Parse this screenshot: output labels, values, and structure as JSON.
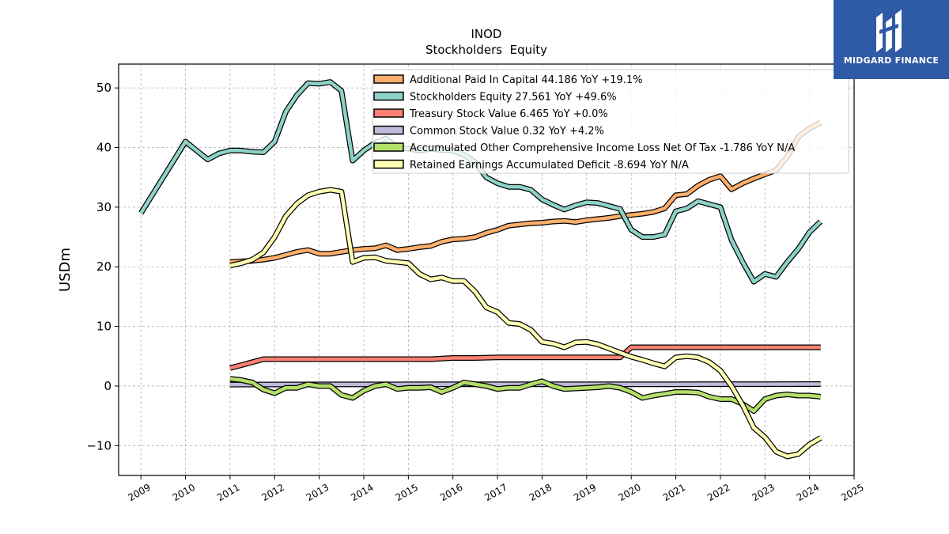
{
  "brand": {
    "name": "MIDGARD FINANCE",
    "color": "#2f5aa6"
  },
  "chart_data": {
    "type": "line",
    "title": "INOD",
    "subtitle": "Stockholders  Equity",
    "ylabel": "USDm",
    "xlabel": "",
    "xlim": [
      2008.5,
      2025
    ],
    "ylim": [
      -15,
      54
    ],
    "xticks": [
      2009,
      2010,
      2011,
      2012,
      2013,
      2014,
      2015,
      2016,
      2017,
      2018,
      2019,
      2020,
      2021,
      2022,
      2023,
      2024,
      2025
    ],
    "yticks": [
      -10,
      0,
      10,
      20,
      30,
      40,
      50
    ],
    "grid": true,
    "legend_position": "top-right",
    "series": [
      {
        "name": "Additional Paid In Capital  44.186 YoY +19.1%",
        "color": "#fdae6b",
        "x": [
          2011,
          2011.25,
          2011.5,
          2011.75,
          2012,
          2012.25,
          2012.5,
          2012.75,
          2013,
          2013.25,
          2013.5,
          2013.75,
          2014,
          2014.25,
          2014.5,
          2014.75,
          2015,
          2015.25,
          2015.5,
          2015.75,
          2016,
          2016.25,
          2016.5,
          2016.75,
          2017,
          2017.25,
          2017.5,
          2017.75,
          2018,
          2018.25,
          2018.5,
          2018.75,
          2019,
          2019.25,
          2019.5,
          2019.75,
          2020,
          2020.25,
          2020.5,
          2020.75,
          2021,
          2021.25,
          2021.5,
          2021.75,
          2022,
          2022.25,
          2022.5,
          2022.75,
          2023,
          2023.25,
          2023.5,
          2023.75,
          2024,
          2024.25
        ],
        "y": [
          20.8,
          20.9,
          21.0,
          21.2,
          21.5,
          22.0,
          22.5,
          22.8,
          22.2,
          22.2,
          22.5,
          22.8,
          23.0,
          23.1,
          23.6,
          22.8,
          23.0,
          23.3,
          23.5,
          24.2,
          24.6,
          24.7,
          25.0,
          25.7,
          26.2,
          26.9,
          27.1,
          27.3,
          27.4,
          27.6,
          27.7,
          27.5,
          27.8,
          28.0,
          28.2,
          28.5,
          28.7,
          28.9,
          29.2,
          29.8,
          32.0,
          32.2,
          33.6,
          34.6,
          35.2,
          33.0,
          34.0,
          34.8,
          35.5,
          36.2,
          38.5,
          41.8,
          43.2,
          44.2
        ]
      },
      {
        "name": "Stockholders Equity  27.561 YoY +49.6%",
        "color": "#8dd3c7",
        "x": [
          2009,
          2009.25,
          2009.5,
          2009.75,
          2010,
          2010.25,
          2010.5,
          2010.75,
          2011,
          2011.25,
          2011.5,
          2011.75,
          2012,
          2012.25,
          2012.5,
          2012.75,
          2013,
          2013.25,
          2013.5,
          2013.75,
          2014,
          2014.25,
          2014.5,
          2014.75,
          2015,
          2015.25,
          2015.5,
          2015.75,
          2016,
          2016.25,
          2016.5,
          2016.75,
          2017,
          2017.25,
          2017.5,
          2017.75,
          2018,
          2018.25,
          2018.5,
          2018.75,
          2019,
          2019.25,
          2019.5,
          2019.75,
          2020,
          2020.25,
          2020.5,
          2020.75,
          2021,
          2021.25,
          2021.5,
          2021.75,
          2022,
          2022.25,
          2022.5,
          2022.75,
          2023,
          2023.25,
          2023.5,
          2023.75,
          2024,
          2024.25
        ],
        "y": [
          29.0,
          32.0,
          35.0,
          38.0,
          41.0,
          39.5,
          38.0,
          39.0,
          39.5,
          39.5,
          39.3,
          39.2,
          41.0,
          46.0,
          48.8,
          50.8,
          50.7,
          51.0,
          49.5,
          37.8,
          39.5,
          40.8,
          41.5,
          40.0,
          39.8,
          39.5,
          39.8,
          39.6,
          39.5,
          38.8,
          37.5,
          35.0,
          34.0,
          33.4,
          33.4,
          32.9,
          31.3,
          30.4,
          29.6,
          30.3,
          30.8,
          30.7,
          30.2,
          29.7,
          26.2,
          25.0,
          25.0,
          25.4,
          29.3,
          29.8,
          31.0,
          30.5,
          30.0,
          24.5,
          20.8,
          17.5,
          18.8,
          18.3,
          20.8,
          23.0,
          25.8,
          27.6
        ]
      },
      {
        "name": "Treasury Stock Value  6.465 YoY +0.0%",
        "color": "#fb8072",
        "x": [
          2011,
          2011.25,
          2011.5,
          2011.75,
          2012,
          2012.5,
          2013,
          2013.5,
          2014,
          2014.5,
          2015,
          2015.5,
          2016,
          2016.5,
          2017,
          2017.5,
          2018,
          2018.5,
          2019,
          2019.5,
          2019.75,
          2020,
          2020.5,
          2021,
          2021.5,
          2022,
          2022.5,
          2023,
          2023.5,
          2024,
          2024.25
        ],
        "y": [
          3.0,
          3.5,
          4.0,
          4.5,
          4.5,
          4.5,
          4.5,
          4.5,
          4.5,
          4.5,
          4.5,
          4.5,
          4.7,
          4.7,
          4.8,
          4.8,
          4.8,
          4.8,
          4.8,
          4.8,
          4.8,
          6.5,
          6.5,
          6.5,
          6.5,
          6.5,
          6.5,
          6.5,
          6.5,
          6.5,
          6.5
        ]
      },
      {
        "name": "Common Stock Value  0.32 YoY +4.2%",
        "color": "#bebada",
        "x": [
          2011,
          2012,
          2013,
          2014,
          2015,
          2016,
          2017,
          2018,
          2019,
          2020,
          2021,
          2022,
          2023,
          2024,
          2024.25
        ],
        "y": [
          0.25,
          0.26,
          0.27,
          0.27,
          0.28,
          0.28,
          0.29,
          0.29,
          0.3,
          0.3,
          0.3,
          0.31,
          0.31,
          0.32,
          0.32
        ]
      },
      {
        "name": "Accumulated Other Comprehensive Income Loss Net Of Tax  -1.786 YoY N/A",
        "color": "#b3de69",
        "x": [
          2011,
          2011.25,
          2011.5,
          2011.75,
          2012,
          2012.25,
          2012.5,
          2012.75,
          2013,
          2013.25,
          2013.5,
          2013.75,
          2014,
          2014.25,
          2014.5,
          2014.75,
          2015,
          2015.25,
          2015.5,
          2015.75,
          2016,
          2016.25,
          2016.5,
          2016.75,
          2017,
          2017.25,
          2017.5,
          2017.75,
          2018,
          2018.25,
          2018.5,
          2018.75,
          2019,
          2019.25,
          2019.5,
          2019.75,
          2020,
          2020.25,
          2020.5,
          2020.75,
          2021,
          2021.25,
          2021.5,
          2021.75,
          2022,
          2022.25,
          2022.5,
          2022.75,
          2023,
          2023.25,
          2023.5,
          2023.75,
          2024,
          2024.25
        ],
        "y": [
          1.2,
          1.0,
          0.6,
          -0.6,
          -1.2,
          -0.3,
          -0.3,
          0.3,
          0.0,
          0.0,
          -1.5,
          -2.0,
          -0.8,
          0.0,
          0.3,
          -0.5,
          -0.3,
          -0.3,
          -0.2,
          -1.0,
          -0.3,
          0.6,
          0.3,
          0.0,
          -0.5,
          -0.3,
          -0.3,
          0.3,
          0.8,
          0.0,
          -0.5,
          -0.4,
          -0.3,
          -0.2,
          0.0,
          -0.3,
          -1.0,
          -2.0,
          -1.6,
          -1.3,
          -1.0,
          -1.0,
          -1.1,
          -1.8,
          -2.2,
          -2.2,
          -3.0,
          -4.2,
          -2.2,
          -1.6,
          -1.4,
          -1.6,
          -1.6,
          -1.8
        ]
      },
      {
        "name": "Retained Earnings Accumulated Deficit  -8.694 YoY N/A",
        "color": "#ffffb3",
        "x": [
          2011,
          2011.25,
          2011.5,
          2011.75,
          2012,
          2012.25,
          2012.5,
          2012.75,
          2013,
          2013.25,
          2013.5,
          2013.75,
          2014,
          2014.25,
          2014.5,
          2014.75,
          2015,
          2015.25,
          2015.5,
          2015.75,
          2016,
          2016.25,
          2016.5,
          2016.75,
          2017,
          2017.25,
          2017.5,
          2017.75,
          2018,
          2018.25,
          2018.5,
          2018.75,
          2019,
          2019.25,
          2019.5,
          2019.75,
          2020,
          2020.25,
          2020.5,
          2020.75,
          2021,
          2021.25,
          2021.5,
          2021.75,
          2022,
          2022.25,
          2022.5,
          2022.75,
          2023,
          2023.25,
          2023.5,
          2023.75,
          2024,
          2024.25
        ],
        "y": [
          20.2,
          20.6,
          21.2,
          22.4,
          25.0,
          28.5,
          30.6,
          32.0,
          32.6,
          32.9,
          32.6,
          20.8,
          21.5,
          21.6,
          21.0,
          20.8,
          20.6,
          18.8,
          17.9,
          18.2,
          17.6,
          17.6,
          15.8,
          13.2,
          12.4,
          10.6,
          10.4,
          9.4,
          7.4,
          7.1,
          6.5,
          7.3,
          7.4,
          7.0,
          6.3,
          5.6,
          4.9,
          4.4,
          3.8,
          3.3,
          4.8,
          5.0,
          4.8,
          4.0,
          2.6,
          0.0,
          -3.2,
          -7.0,
          -8.6,
          -11.0,
          -11.8,
          -11.4,
          -9.8,
          -8.7
        ]
      }
    ]
  }
}
